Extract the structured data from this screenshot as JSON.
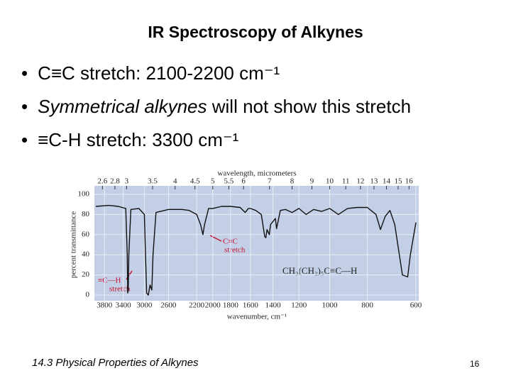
{
  "slide": {
    "title": "IR Spectroscopy of Alkynes",
    "bullets": [
      {
        "text": "C≡C stretch: 2100-2200 cm⁻¹"
      },
      {
        "italic": "Symmetrical alkynes",
        "text": "will not show this stretch"
      },
      {
        "text": "≡C-H stretch: 3300 cm⁻¹"
      }
    ],
    "footer": "14.3 Physical Properties of Alkynes",
    "page_number": "16"
  },
  "chart_data": {
    "type": "line",
    "x_label": "wavenumber, cm⁻¹",
    "x2_label": "wavelength, micrometers",
    "y_label": "percent transmittance",
    "xscale": "log",
    "xlim": [
      4000,
      600
    ],
    "xticks": [
      3800,
      3400,
      3000,
      2600,
      2200,
      2000,
      1800,
      1600,
      1400,
      1200,
      1000,
      800,
      600
    ],
    "x2lim": [
      2.5,
      16.667
    ],
    "x2ticks": [
      2.6,
      2.8,
      3,
      3.5,
      4,
      4.5,
      5,
      5.5,
      6,
      7,
      8,
      9,
      10,
      11,
      12,
      13,
      14,
      15,
      16
    ],
    "ylim": [
      0,
      100
    ],
    "yticks": [
      0,
      20,
      40,
      60,
      80,
      100
    ],
    "grid": true,
    "annotations": [
      "C≡C",
      "stretch",
      "≡C—H",
      "stretch",
      "CH₃(CH₂)₅C≡C—H"
    ],
    "series": [
      {
        "name": "CH₃(CH₂)₅C≡C—H",
        "color": "#111111",
        "x": [
          4000,
          3700,
          3500,
          3350,
          3320,
          3310,
          3300,
          3290,
          3250,
          3100,
          3000,
          2960,
          2930,
          2900,
          2870,
          2850,
          2800,
          2600,
          2400,
          2300,
          2200,
          2150,
          2120,
          2100,
          2050,
          2000,
          1900,
          1800,
          1700,
          1650,
          1620,
          1600,
          1550,
          1500,
          1470,
          1460,
          1450,
          1430,
          1420,
          1380,
          1370,
          1340,
          1300,
          1250,
          1200,
          1150,
          1100,
          1050,
          1000,
          950,
          900,
          850,
          800,
          760,
          740,
          720,
          700,
          680,
          650,
          630,
          620,
          600
        ],
        "values": [
          88,
          89,
          88,
          86,
          40,
          2,
          5,
          40,
          85,
          86,
          80,
          2,
          0,
          10,
          5,
          40,
          82,
          85,
          85,
          84,
          80,
          70,
          60,
          70,
          86,
          86,
          88,
          88,
          87,
          82,
          86,
          86,
          84,
          80,
          58,
          57,
          65,
          60,
          70,
          76,
          66,
          84,
          85,
          82,
          86,
          80,
          85,
          83,
          86,
          80,
          86,
          87,
          87,
          80,
          65,
          78,
          84,
          70,
          20,
          18,
          40,
          72
        ]
      }
    ]
  }
}
